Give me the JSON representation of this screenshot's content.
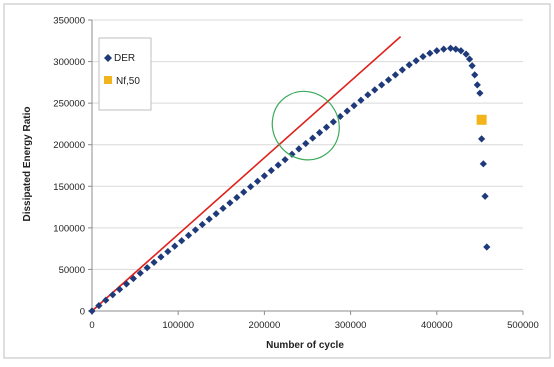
{
  "chart_data": {
    "type": "scatter",
    "xlabel": "Number of cycle",
    "ylabel": "Dissipated Energy Ratio",
    "xlim": [
      0,
      500000
    ],
    "ylim": [
      0,
      350000
    ],
    "x_ticks": [
      0,
      100000,
      200000,
      300000,
      400000,
      500000
    ],
    "y_ticks": [
      0,
      50000,
      100000,
      150000,
      200000,
      250000,
      300000,
      350000
    ],
    "x_tick_labels": [
      "0",
      "100000",
      "200000",
      "300000",
      "400000",
      "500000"
    ],
    "y_tick_labels": [
      "0",
      "50000",
      "100000",
      "150000",
      "200000",
      "250000",
      "300000",
      "350000"
    ],
    "grid": "horizontal",
    "legend_position": "top-left inside",
    "series": [
      {
        "name": "DER",
        "marker": "diamond",
        "color": "#1F3A7A",
        "points": [
          [
            0,
            0
          ],
          [
            8000,
            6500
          ],
          [
            16000,
            13000
          ],
          [
            24000,
            19500
          ],
          [
            32000,
            26000
          ],
          [
            40000,
            32500
          ],
          [
            48000,
            39000
          ],
          [
            56000,
            45500
          ],
          [
            64000,
            52000
          ],
          [
            72000,
            58500
          ],
          [
            80000,
            65000
          ],
          [
            88000,
            71500
          ],
          [
            96000,
            78000
          ],
          [
            104000,
            84500
          ],
          [
            112000,
            91000
          ],
          [
            120000,
            97500
          ],
          [
            128000,
            104000
          ],
          [
            136000,
            110500
          ],
          [
            144000,
            117000
          ],
          [
            152000,
            123500
          ],
          [
            160000,
            130000
          ],
          [
            168000,
            136500
          ],
          [
            176000,
            143000
          ],
          [
            184000,
            149500
          ],
          [
            192000,
            156000
          ],
          [
            200000,
            162500
          ],
          [
            208000,
            169000
          ],
          [
            216000,
            175500
          ],
          [
            224000,
            182000
          ],
          [
            232000,
            188500
          ],
          [
            240000,
            195000
          ],
          [
            248000,
            201500
          ],
          [
            256000,
            208000
          ],
          [
            264000,
            214500
          ],
          [
            272000,
            221000
          ],
          [
            280000,
            227500
          ],
          [
            288000,
            234000
          ],
          [
            296000,
            240500
          ],
          [
            304000,
            247000
          ],
          [
            312000,
            253500
          ],
          [
            320000,
            260000
          ],
          [
            328000,
            266000
          ],
          [
            336000,
            272000
          ],
          [
            344000,
            278000
          ],
          [
            352000,
            284000
          ],
          [
            360000,
            290000
          ],
          [
            368000,
            296000
          ],
          [
            376000,
            301000
          ],
          [
            384000,
            306000
          ],
          [
            392000,
            310000
          ],
          [
            400000,
            313000
          ],
          [
            408000,
            315000
          ],
          [
            416000,
            316000
          ],
          [
            422000,
            315000
          ],
          [
            428000,
            313000
          ],
          [
            434000,
            309000
          ],
          [
            438000,
            303000
          ],
          [
            441000,
            295000
          ],
          [
            444000,
            284000
          ],
          [
            447000,
            272000
          ],
          [
            450000,
            262000
          ],
          [
            452000,
            207000
          ],
          [
            454000,
            177000
          ],
          [
            456000,
            138000
          ],
          [
            458000,
            77000
          ]
        ]
      },
      {
        "name": "Nf,50",
        "marker": "square",
        "color": "#F2B31B",
        "points": [
          [
            452000,
            230000
          ]
        ]
      }
    ],
    "trendline": {
      "color": "#E0201B",
      "from": [
        0,
        0
      ],
      "to": [
        358000,
        330000
      ]
    },
    "annotation": {
      "shape": "ellipse",
      "color": "#3BAA5A",
      "center": [
        248000,
        223000
      ],
      "radius_x": 38000,
      "radius_y": 42000,
      "rotation_deg": -35
    }
  }
}
